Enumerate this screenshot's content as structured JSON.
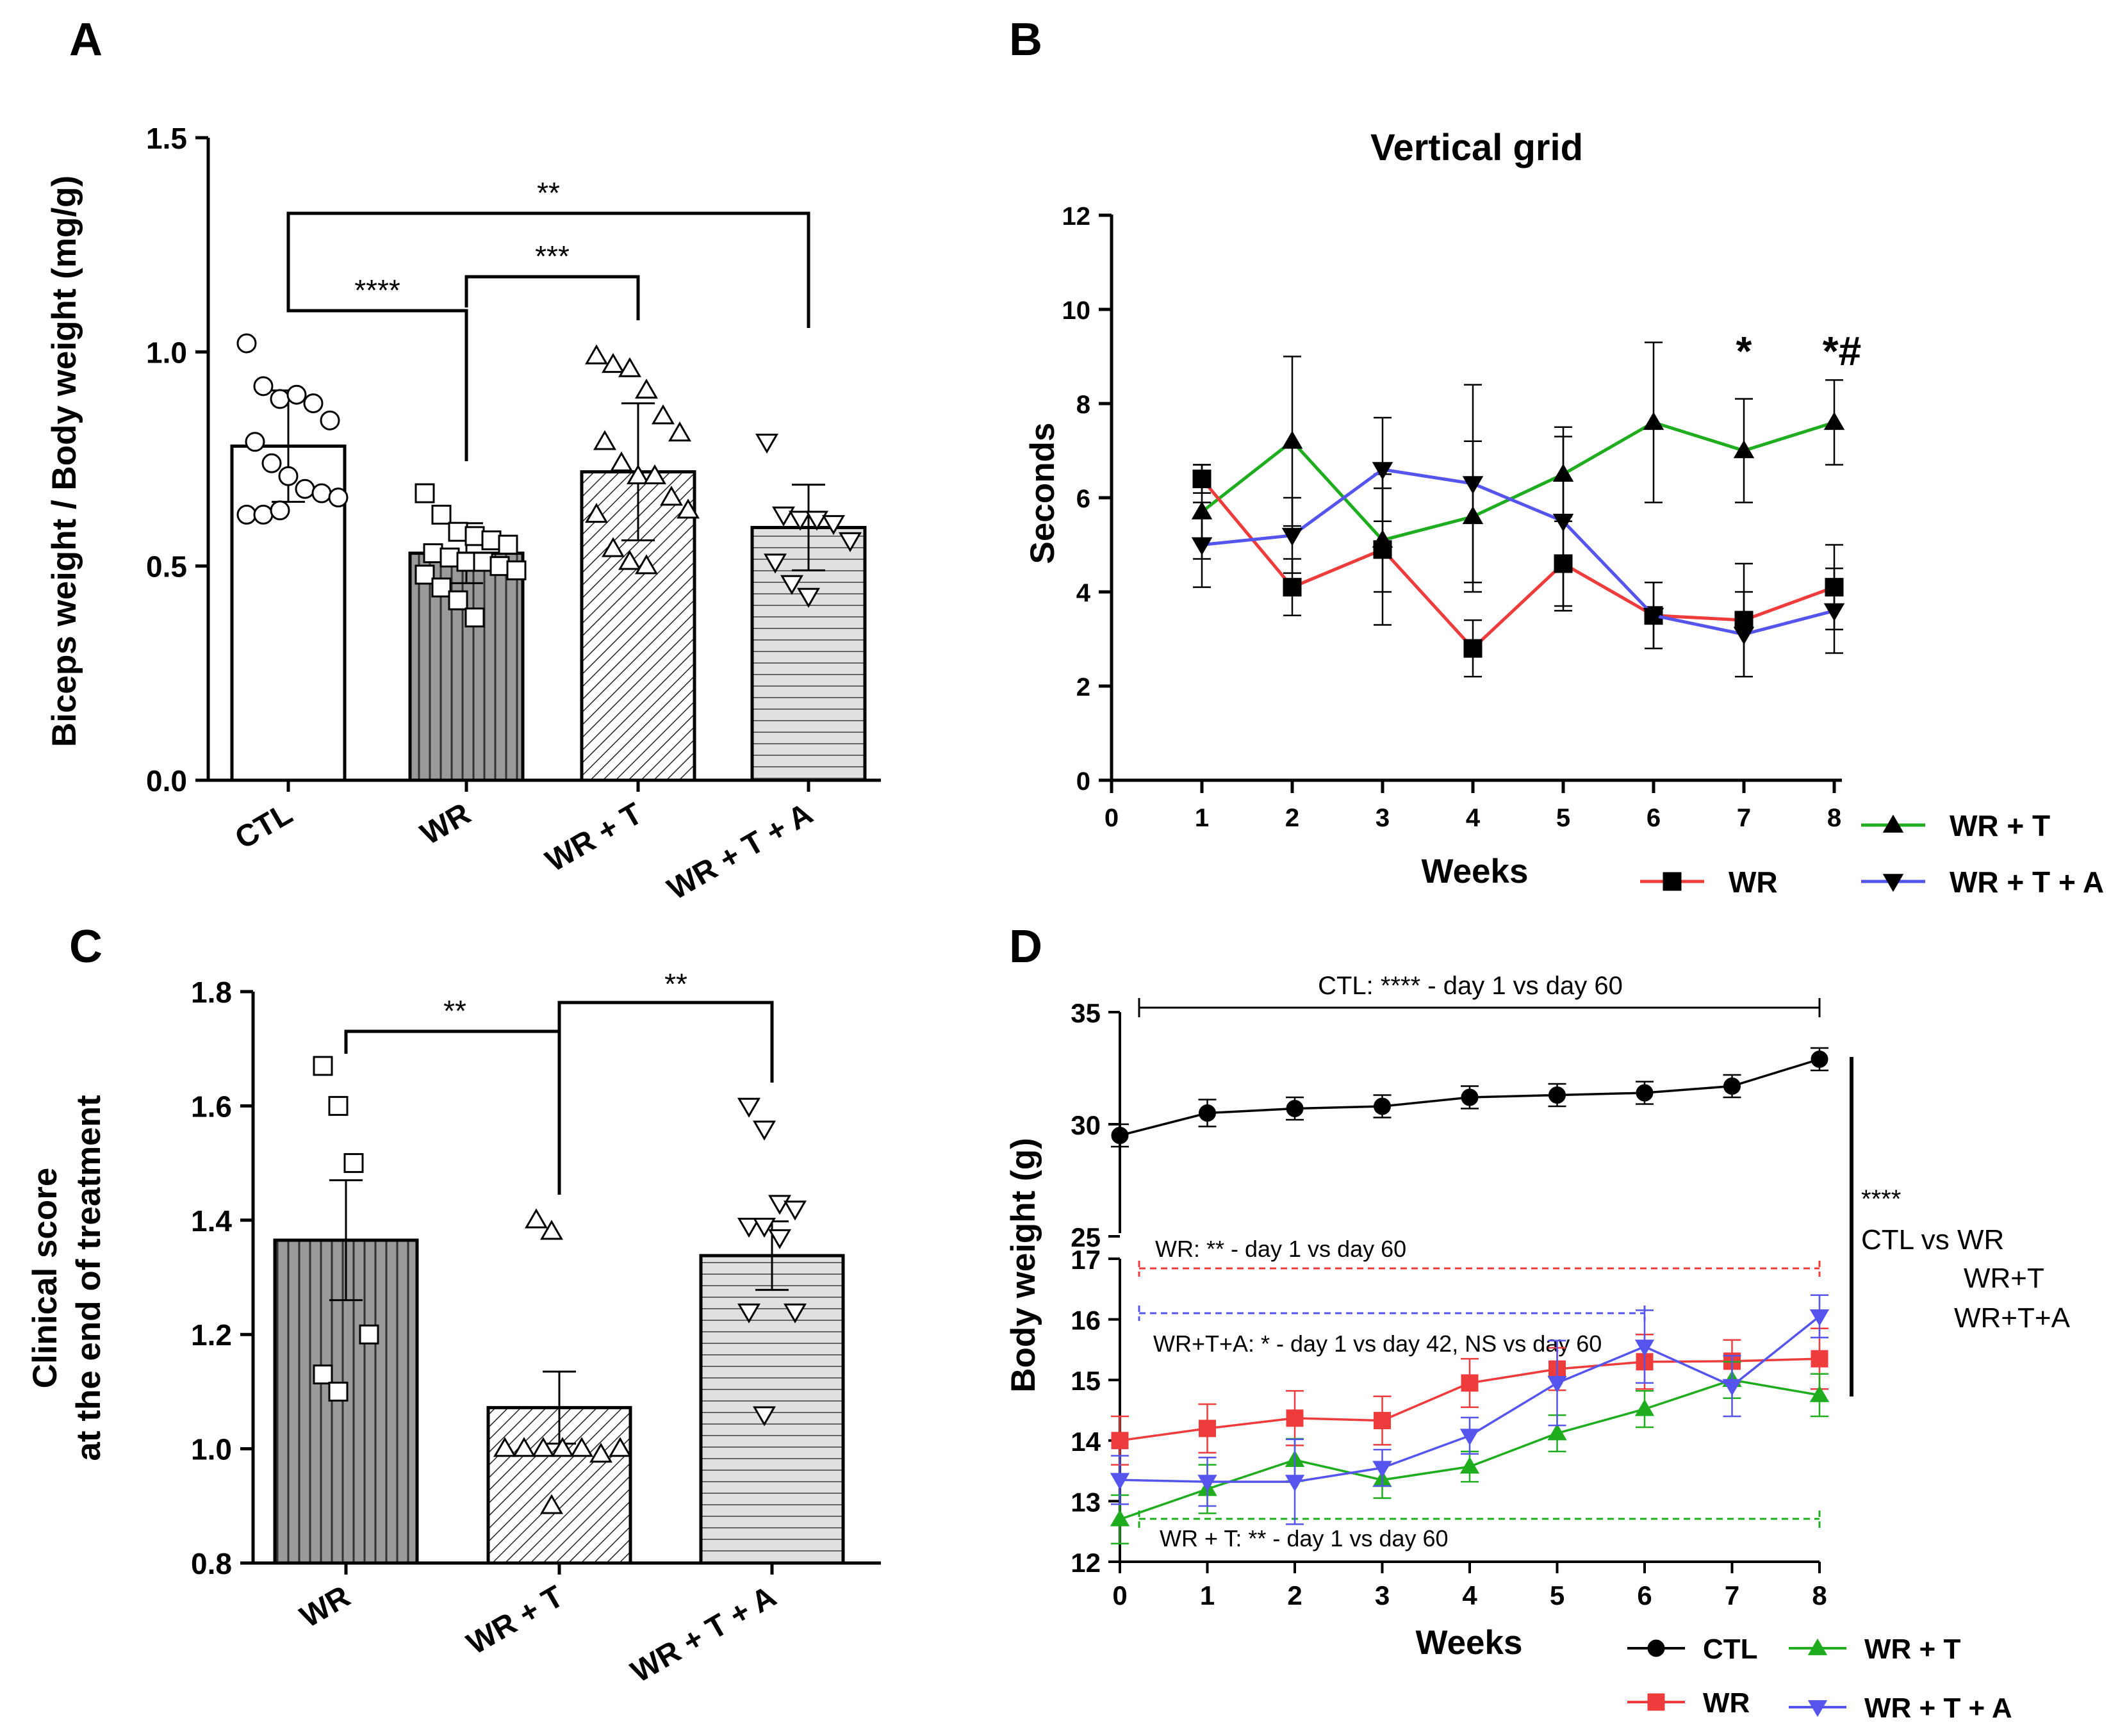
{
  "figure": {
    "panel_letters": [
      "A",
      "B",
      "C",
      "D"
    ]
  },
  "colors": {
    "WR_line": "#ee3b3b",
    "WRT_line": "#1fad1f",
    "WRTA_line": "#5555ee",
    "CTL_line": "#000000"
  },
  "chart_data": [
    {
      "panel": "A",
      "type": "bar",
      "title": "",
      "xlabel": "",
      "ylabel": "Biceps weight / Body weight (mg/g)",
      "ylim": [
        0,
        1.5
      ],
      "yticks": [
        "0.0",
        "0.5",
        "1.0",
        "1.5"
      ],
      "categories": [
        "CTL",
        "WR",
        "WR + T",
        "WR + T + A"
      ],
      "values": [
        0.78,
        0.53,
        0.72,
        0.59
      ],
      "sd": [
        0.13,
        0.07,
        0.16,
        0.1
      ],
      "fills": [
        "open",
        "vertical-stripes",
        "diagonal-hatch",
        "horizontal-stripes"
      ],
      "points": [
        [
          1.02,
          0.92,
          0.89,
          0.9,
          0.88,
          0.84,
          0.79,
          0.74,
          0.71,
          0.68,
          0.67,
          0.66,
          0.62,
          0.62,
          0.63
        ],
        [
          0.67,
          0.62,
          0.58,
          0.57,
          0.56,
          0.55,
          0.53,
          0.52,
          0.51,
          0.51,
          0.5,
          0.49,
          0.48,
          0.45,
          0.42,
          0.38
        ],
        [
          0.99,
          0.97,
          0.96,
          0.91,
          0.85,
          0.81,
          0.79,
          0.74,
          0.71,
          0.71,
          0.66,
          0.63,
          0.62,
          0.54,
          0.51,
          0.5
        ],
        [
          0.79,
          0.62,
          0.61,
          0.61,
          0.6,
          0.56,
          0.51,
          0.46,
          0.43
        ]
      ],
      "markers": [
        "circle",
        "square",
        "triangle-up",
        "triangle-down"
      ],
      "comparisons": [
        {
          "from": "CTL",
          "to": "WR",
          "label": "****"
        },
        {
          "from": "WR",
          "to": "WR + T",
          "label": "***"
        },
        {
          "from": "CTL",
          "to": "WR + T + A",
          "label": "**"
        }
      ]
    },
    {
      "panel": "B",
      "type": "line",
      "title": "Vertical grid",
      "xlabel": "Weeks",
      "ylabel": "Seconds",
      "xlim": [
        0,
        8
      ],
      "ylim": [
        0,
        12
      ],
      "xticks": [
        "0",
        "1",
        "2",
        "3",
        "4",
        "5",
        "6",
        "7",
        "8"
      ],
      "yticks": [
        "0",
        "2",
        "4",
        "6",
        "8",
        "10",
        "12"
      ],
      "x": [
        1,
        2,
        3,
        4,
        5,
        6,
        7,
        8
      ],
      "series": [
        {
          "name": "WR + T",
          "marker": "triangle-up",
          "values": [
            5.7,
            7.2,
            5.1,
            5.6,
            6.5,
            7.6,
            7.0,
            7.6
          ],
          "err": [
            1.0,
            1.8,
            1.1,
            1.6,
            1.0,
            1.7,
            1.1,
            0.9
          ]
        },
        {
          "name": "WR",
          "marker": "square",
          "values": [
            6.4,
            4.1,
            4.9,
            2.8,
            4.6,
            3.5,
            3.4,
            4.1
          ],
          "err": [
            0.3,
            0.6,
            1.6,
            0.6,
            1.0,
            0.7,
            1.2,
            0.9
          ]
        },
        {
          "name": "WR + T + A",
          "marker": "triangle-down",
          "values": [
            5.0,
            5.2,
            6.6,
            6.3,
            5.5,
            3.5,
            3.1,
            3.6
          ],
          "err": [
            0.9,
            0.8,
            1.1,
            2.1,
            1.8,
            0.7,
            0.9,
            0.9
          ]
        }
      ],
      "annotations": [
        {
          "x": 7,
          "text": "*"
        },
        {
          "x": 8,
          "text": "*#"
        }
      ],
      "legend": "bottom-right"
    },
    {
      "panel": "C",
      "type": "bar",
      "title": "",
      "xlabel": "",
      "ylabel": "Clinical score at the end of treatment",
      "ylabel_lines": [
        "Clinical score",
        "at the end of treatment"
      ],
      "ylim": [
        0.8,
        1.8
      ],
      "yticks": [
        "0.8",
        "1.0",
        "1.2",
        "1.4",
        "1.6",
        "1.8"
      ],
      "categories": [
        "WR",
        "WR + T",
        "WR + T + A"
      ],
      "values": [
        1.365,
        1.072,
        1.338
      ],
      "sem": [
        0.105,
        0.063,
        0.06
      ],
      "fills": [
        "vertical-stripes",
        "diagonal-hatch",
        "horizontal-stripes"
      ],
      "points": [
        [
          1.67,
          1.6,
          1.5,
          1.2,
          1.13,
          1.1
        ],
        [
          1.4,
          1.38,
          1.0,
          1.0,
          1.0,
          1.0,
          1.0,
          0.99,
          1.0,
          0.9
        ],
        [
          1.6,
          1.56,
          1.43,
          1.42,
          1.39,
          1.39,
          1.37,
          1.24,
          1.24,
          1.06
        ]
      ],
      "markers": [
        "square",
        "triangle-up",
        "triangle-down"
      ],
      "comparisons": [
        {
          "from": "WR",
          "to": "WR + T",
          "label": "**"
        },
        {
          "from": "WR + T",
          "to": "WR + T + A",
          "label": "**"
        }
      ]
    },
    {
      "panel": "D",
      "type": "line",
      "title": "",
      "xlabel": "Weeks",
      "ylabel": "Body weight (g)",
      "xlim": [
        0,
        8
      ],
      "ylim_top": [
        25,
        35
      ],
      "ylim_bottom": [
        12,
        17
      ],
      "yticks_top": [
        "25",
        "30",
        "35"
      ],
      "yticks_bottom": [
        "12",
        "13",
        "14",
        "15",
        "16",
        "17"
      ],
      "xticks": [
        "0",
        "1",
        "2",
        "3",
        "4",
        "5",
        "6",
        "7",
        "8"
      ],
      "x": [
        0,
        1,
        2,
        3,
        4,
        5,
        6,
        7,
        8
      ],
      "series": [
        {
          "name": "CTL",
          "marker": "circle",
          "values": [
            29.5,
            30.5,
            30.7,
            30.8,
            31.2,
            31.3,
            31.4,
            31.7,
            32.9
          ],
          "err": [
            0.5,
            0.6,
            0.5,
            0.5,
            0.5,
            0.5,
            0.5,
            0.5,
            0.5
          ]
        },
        {
          "name": "WR",
          "marker": "square",
          "values": [
            14.0,
            14.2,
            14.37,
            14.33,
            14.95,
            15.18,
            15.3,
            15.31,
            15.35
          ],
          "err": [
            0.4,
            0.4,
            0.45,
            0.4,
            0.4,
            0.35,
            0.45,
            0.35,
            0.5
          ]
        },
        {
          "name": "WR + T",
          "marker": "triangle-up",
          "values": [
            12.7,
            13.2,
            13.68,
            13.35,
            13.57,
            14.12,
            14.52,
            15.0,
            14.75
          ],
          "err": [
            0.4,
            0.4,
            0.35,
            0.3,
            0.25,
            0.3,
            0.3,
            0.3,
            0.35
          ]
        },
        {
          "name": "WR + T + A",
          "marker": "triangle-down",
          "values": [
            13.35,
            13.32,
            13.32,
            13.55,
            14.08,
            14.95,
            15.55,
            14.9,
            16.05
          ],
          "err": [
            0.4,
            0.4,
            0.7,
            0.3,
            0.3,
            0.7,
            0.6,
            0.5,
            0.35
          ]
        }
      ],
      "brackets": [
        {
          "text": "CTL: **** - day 1 vs day 60"
        },
        {
          "text": "WR: ** - day 1 vs day 60"
        },
        {
          "text": "WR+T+A: *  - day 1 vs day 42, NS vs day 60"
        },
        {
          "text": "WR + T: ** - day 1 vs day 60"
        }
      ],
      "side_annotation": [
        "****",
        "CTL vs WR",
        "WR+T",
        "WR+T+A"
      ],
      "legend": "bottom-right"
    }
  ]
}
